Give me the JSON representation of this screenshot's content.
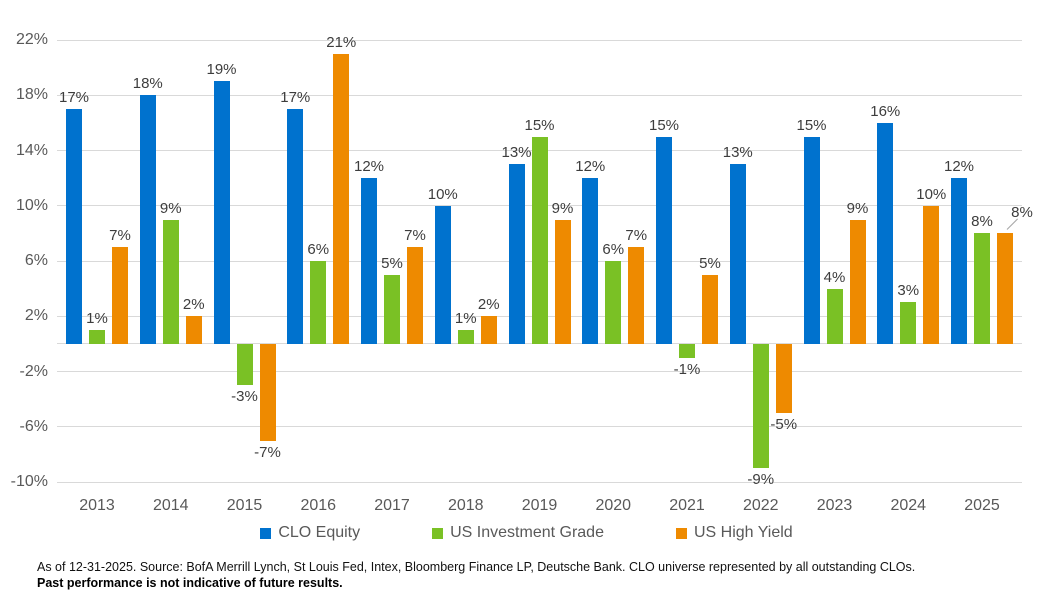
{
  "chart_data": {
    "type": "bar",
    "title": "",
    "xlabel": "",
    "ylabel": "",
    "categories": [
      "2013",
      "2014",
      "2015",
      "2016",
      "2017",
      "2018",
      "2019",
      "2020",
      "2021",
      "2022",
      "2023",
      "2024",
      "2025"
    ],
    "series": [
      {
        "name": "CLO Equity",
        "color": "#0072CE",
        "values": [
          17,
          18,
          19,
          17,
          12,
          10,
          13,
          12,
          15,
          13,
          15,
          16,
          12
        ],
        "labels": [
          "17%",
          "18%",
          "19%",
          "17%",
          "12%",
          "10%",
          "13%",
          "12%",
          "15%",
          "13%",
          "15%",
          "16%",
          "12%"
        ]
      },
      {
        "name": "US Investment Grade",
        "color": "#7AC125",
        "values": [
          1,
          9,
          -3,
          6,
          5,
          1,
          15,
          6,
          -1,
          -9,
          4,
          3,
          8
        ],
        "labels": [
          "1%",
          "9%",
          "-3%",
          "6%",
          "5%",
          "1%",
          "15%",
          "6%",
          "-1%",
          "-9%",
          "4%",
          "3%",
          "8%"
        ]
      },
      {
        "name": "US High Yield",
        "color": "#EE8A00",
        "values": [
          7,
          2,
          -7,
          21,
          7,
          2,
          9,
          7,
          5,
          -5,
          9,
          10,
          8
        ],
        "labels": [
          "7%",
          "2%",
          "-7%",
          "21%",
          "7%",
          "2%",
          "9%",
          "7%",
          "5%",
          "-5%",
          "9%",
          "10%",
          "8%"
        ]
      }
    ],
    "ylim": [
      -10,
      22
    ],
    "yticks": {
      "values": [
        22,
        18,
        14,
        10,
        6,
        2,
        -2,
        -6,
        -10
      ],
      "labels": [
        "22%",
        "18%",
        "14%",
        "10%",
        "6%",
        "2%",
        "-2%",
        "-6%",
        "-10%"
      ]
    },
    "zero_line": true,
    "grid": true,
    "legend_position": "bottom",
    "callout": {
      "series_index": 2,
      "point_index": 12,
      "note": "leader line from 8% label to 2025 US High Yield bar"
    }
  },
  "legend": {
    "items": [
      {
        "label": "CLO Equity",
        "color": "#0072CE"
      },
      {
        "label": "US Investment Grade",
        "color": "#7AC125"
      },
      {
        "label": "US High Yield",
        "color": "#EE8A00"
      }
    ]
  },
  "footnote": {
    "line1": "As of 12-31-2025. Source: BofA Merrill Lynch, St Louis Fed, Intex, Bloomberg Finance LP, Deutsche Bank. CLO universe represented by all outstanding CLOs.",
    "line2": "Past performance is not indicative of future results."
  }
}
